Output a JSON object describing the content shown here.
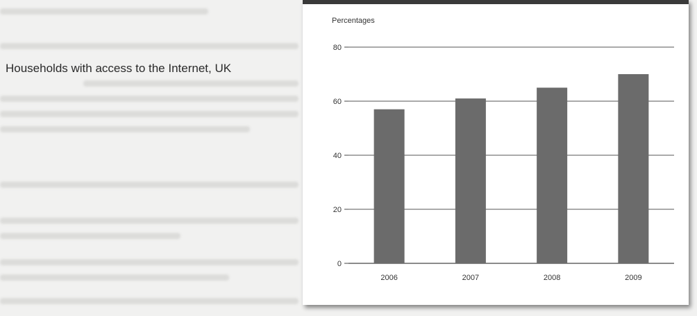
{
  "page": {
    "title": "Households with access to the Internet, UK"
  },
  "chart_data": {
    "type": "bar",
    "title": "Households with access to the Internet, UK",
    "xlabel": "",
    "ylabel": "Percentages",
    "categories": [
      "2006",
      "2007",
      "2008",
      "2009"
    ],
    "values": [
      57,
      61,
      65,
      70
    ],
    "ylim": [
      0,
      80
    ],
    "yticks": [
      "0",
      "20",
      "40",
      "60",
      "80"
    ],
    "grid": true,
    "legend": "none",
    "colors": {
      "bar": "#6b6b6b",
      "grid": "#555555",
      "axis": "#444444"
    }
  }
}
